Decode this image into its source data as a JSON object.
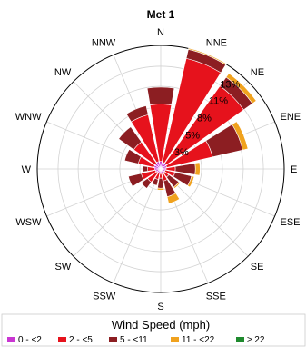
{
  "chart_data": {
    "type": "windrose",
    "title": "Met 1",
    "directions": [
      "N",
      "NNE",
      "NE",
      "ENE",
      "E",
      "ESE",
      "SE",
      "SSE",
      "S",
      "SSW",
      "SW",
      "WSW",
      "W",
      "WNW",
      "NW",
      "NNW"
    ],
    "radial_tick_labels": [
      "3%",
      "5%",
      "8%",
      "11%",
      "13%"
    ],
    "radial_ticks": [
      2.7,
      5.3,
      8.0,
      10.7,
      13.3
    ],
    "rmax": 16,
    "legend_title": "Wind Speed (mph)",
    "series": [
      {
        "name": "0 - <2",
        "color": "#c936d2",
        "values": [
          1.0,
          0.9,
          0.9,
          0.8,
          0.7,
          0.6,
          0.6,
          0.6,
          0.6,
          0.6,
          0.6,
          0.7,
          0.8,
          0.9,
          0.9,
          1.0
        ]
      },
      {
        "name": "2 - <5",
        "color": "#e6121c",
        "values": [
          7.4,
          13.8,
          12.3,
          6.1,
          1.2,
          1.3,
          0.7,
          1.0,
          0.6,
          0.8,
          1.5,
          1.9,
          0.9,
          2.1,
          3.4,
          6.2
        ]
      },
      {
        "name": "5 - <11",
        "color": "#8c1e22",
        "values": [
          2.2,
          1.2,
          1.4,
          4.0,
          2.6,
          2.2,
          1.6,
          2.1,
          1.3,
          0.8,
          1.0,
          1.7,
          0.6,
          1.8,
          2.4,
          1.2
        ]
      },
      {
        "name": "11 - <22",
        "color": "#f0a21e",
        "values": [
          0.0,
          0.15,
          0.6,
          0.7,
          0.6,
          0.35,
          0.2,
          0.9,
          0.25,
          0.0,
          0.0,
          0.0,
          0.0,
          0.0,
          0.0,
          0.0
        ]
      },
      {
        "name": "≥ 22",
        "color": "#1f8a2e",
        "values": [
          0,
          0,
          0,
          0,
          0,
          0,
          0,
          0,
          0,
          0,
          0,
          0,
          0,
          0,
          0,
          0
        ]
      }
    ]
  }
}
